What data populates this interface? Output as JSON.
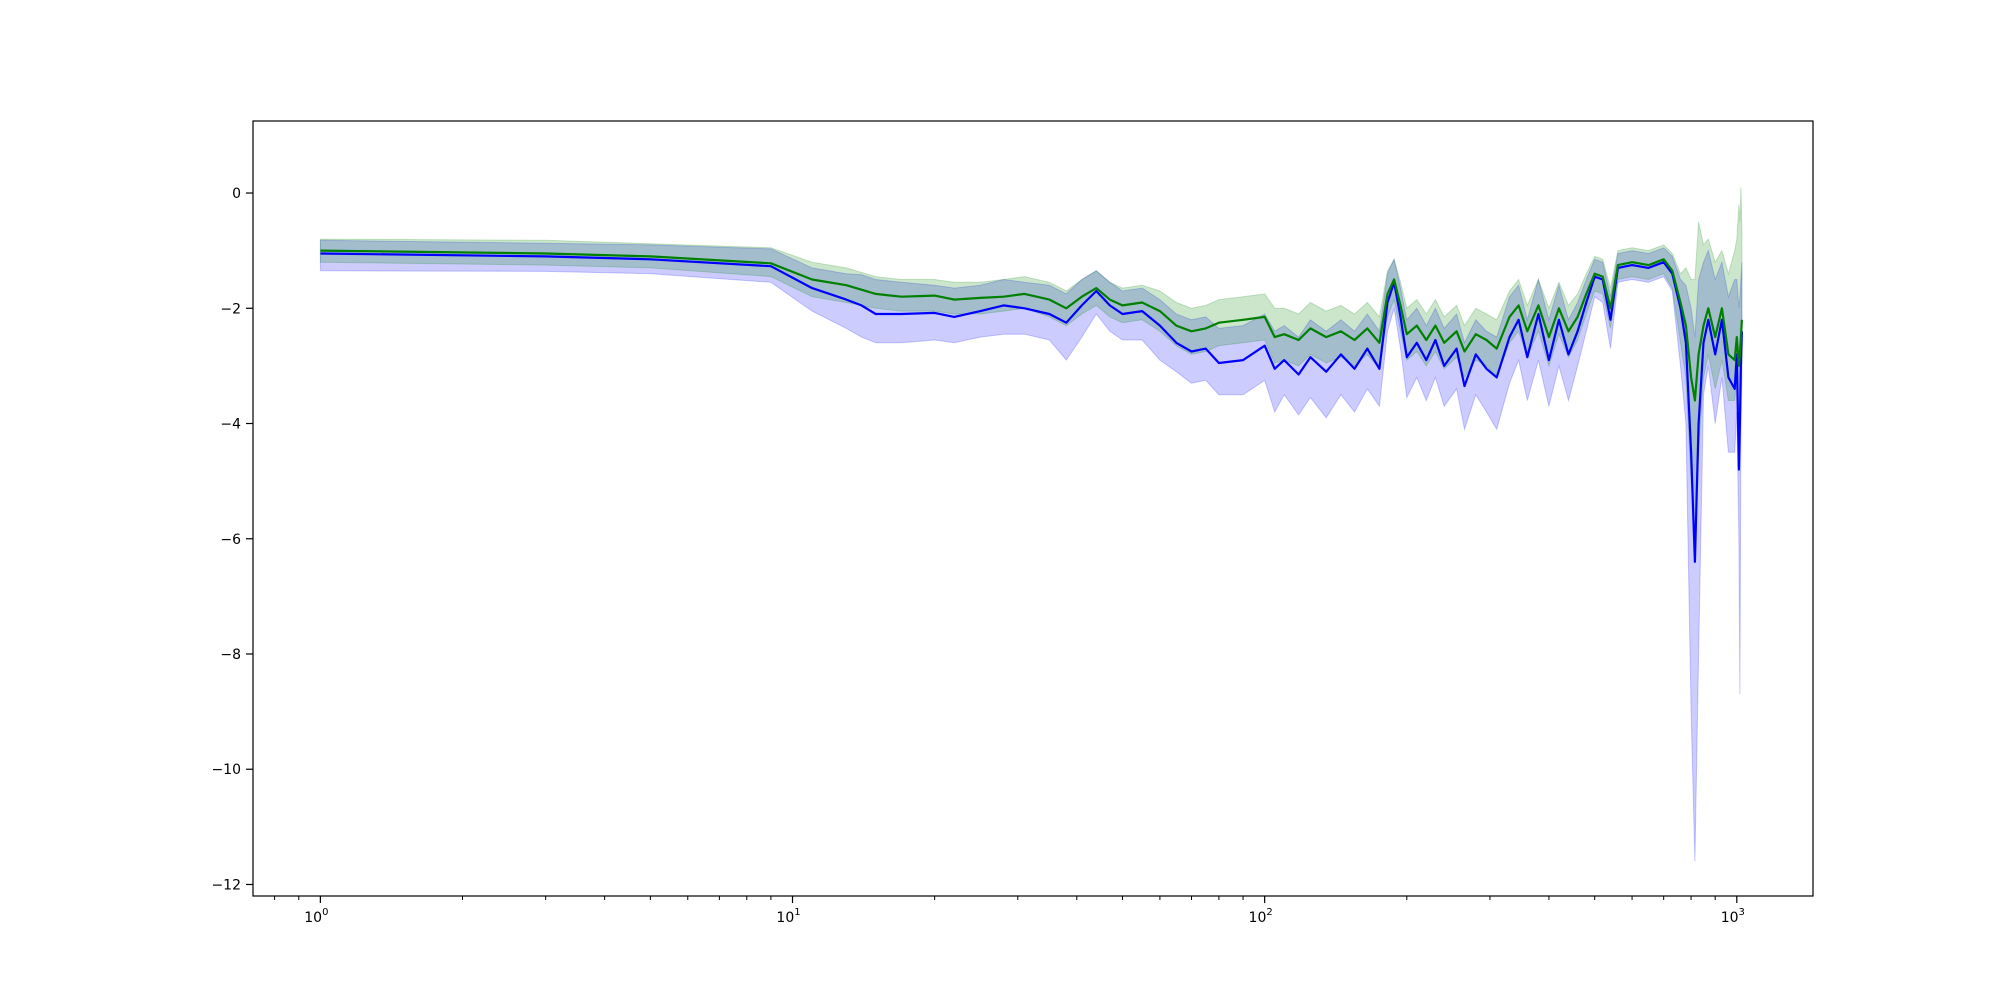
{
  "chart_data": {
    "type": "line",
    "title": "",
    "xlabel": "",
    "ylabel": "",
    "xscale": "log",
    "xlim": [
      0.72,
      1450
    ],
    "ylim": [
      -12.2,
      1.25
    ],
    "grid": false,
    "legend": "none",
    "x_ticks": [
      {
        "value": 1,
        "base": "10",
        "exp": "0"
      },
      {
        "value": 10,
        "base": "10",
        "exp": "1"
      },
      {
        "value": 100,
        "base": "10",
        "exp": "2"
      },
      {
        "value": 1000,
        "base": "10",
        "exp": "3"
      }
    ],
    "y_ticks": [
      {
        "value": 0,
        "label": "0"
      },
      {
        "value": -2,
        "label": "−2"
      },
      {
        "value": -4,
        "label": "−4"
      },
      {
        "value": -6,
        "label": "−6"
      },
      {
        "value": -8,
        "label": "−8"
      },
      {
        "value": -10,
        "label": "−10"
      },
      {
        "value": -12,
        "label": "−12"
      }
    ],
    "series": [
      {
        "color": "#0000ff",
        "band_color": "#0000ff",
        "band_opacity": 0.2,
        "points": [
          [
            1,
            -1.05,
            -0.82,
            -1.35
          ],
          [
            3,
            -1.1,
            -0.87,
            -1.36
          ],
          [
            5,
            -1.15,
            -0.9,
            -1.4
          ],
          [
            9,
            -1.27,
            -0.97,
            -1.55
          ],
          [
            11,
            -1.65,
            -1.3,
            -2.05
          ],
          [
            13,
            -1.85,
            -1.4,
            -2.35
          ],
          [
            14,
            -1.95,
            -1.42,
            -2.5
          ],
          [
            15,
            -2.1,
            -1.5,
            -2.6
          ],
          [
            17,
            -2.1,
            -1.55,
            -2.6
          ],
          [
            20,
            -2.08,
            -1.6,
            -2.55
          ],
          [
            22,
            -2.15,
            -1.65,
            -2.6
          ],
          [
            25,
            -2.05,
            -1.6,
            -2.5
          ],
          [
            28,
            -1.95,
            -1.5,
            -2.45
          ],
          [
            31,
            -2.0,
            -1.55,
            -2.45
          ],
          [
            35,
            -2.1,
            -1.6,
            -2.55
          ],
          [
            38,
            -2.25,
            -1.75,
            -2.9
          ],
          [
            41,
            -1.95,
            -1.5,
            -2.5
          ],
          [
            44,
            -1.7,
            -1.35,
            -2.1
          ],
          [
            47,
            -1.95,
            -1.55,
            -2.4
          ],
          [
            50,
            -2.1,
            -1.7,
            -2.55
          ],
          [
            55,
            -2.05,
            -1.65,
            -2.55
          ],
          [
            60,
            -2.3,
            -1.85,
            -2.9
          ],
          [
            65,
            -2.6,
            -2.1,
            -3.1
          ],
          [
            70,
            -2.75,
            -2.2,
            -3.3
          ],
          [
            75,
            -2.7,
            -2.15,
            -3.25
          ],
          [
            80,
            -2.95,
            -2.35,
            -3.5
          ],
          [
            90,
            -2.9,
            -2.3,
            -3.5
          ],
          [
            100,
            -2.65,
            -2.1,
            -3.25
          ],
          [
            105,
            -3.05,
            -2.4,
            -3.8
          ],
          [
            110,
            -2.9,
            -2.3,
            -3.5
          ],
          [
            118,
            -3.15,
            -2.5,
            -3.85
          ],
          [
            125,
            -2.85,
            -2.2,
            -3.55
          ],
          [
            135,
            -3.1,
            -2.4,
            -3.9
          ],
          [
            145,
            -2.8,
            -2.2,
            -3.5
          ],
          [
            155,
            -3.05,
            -2.4,
            -3.8
          ],
          [
            165,
            -2.7,
            -2.1,
            -3.4
          ],
          [
            175,
            -3.05,
            -2.4,
            -3.7
          ],
          [
            182,
            -1.9,
            -1.4,
            -2.4
          ],
          [
            188,
            -1.55,
            -1.15,
            -2.0
          ],
          [
            194,
            -2.15,
            -1.65,
            -2.7
          ],
          [
            200,
            -2.85,
            -2.2,
            -3.55
          ],
          [
            210,
            -2.6,
            -2.0,
            -3.2
          ],
          [
            220,
            -2.9,
            -2.3,
            -3.6
          ],
          [
            230,
            -2.55,
            -2.0,
            -3.2
          ],
          [
            240,
            -3.0,
            -2.35,
            -3.7
          ],
          [
            255,
            -2.7,
            -2.1,
            -3.4
          ],
          [
            265,
            -3.35,
            -2.6,
            -4.1
          ],
          [
            280,
            -2.8,
            -2.2,
            -3.5
          ],
          [
            295,
            -3.05,
            -2.4,
            -3.8
          ],
          [
            310,
            -3.2,
            -2.5,
            -4.1
          ],
          [
            330,
            -2.5,
            -1.8,
            -3.3
          ],
          [
            345,
            -2.2,
            -1.6,
            -2.9
          ],
          [
            360,
            -2.85,
            -2.2,
            -3.6
          ],
          [
            380,
            -2.1,
            -1.5,
            -2.9
          ],
          [
            400,
            -2.9,
            -2.2,
            -3.7
          ],
          [
            420,
            -2.2,
            -1.6,
            -3.0
          ],
          [
            440,
            -2.8,
            -2.2,
            -3.6
          ],
          [
            460,
            -2.4,
            -1.9,
            -3.0
          ],
          [
            480,
            -1.9,
            -1.5,
            -2.4
          ],
          [
            500,
            -1.45,
            -1.15,
            -1.8
          ],
          [
            520,
            -1.5,
            -1.2,
            -1.9
          ],
          [
            540,
            -2.2,
            -1.8,
            -2.7
          ],
          [
            560,
            -1.3,
            -1.05,
            -1.55
          ],
          [
            600,
            -1.25,
            -1.0,
            -1.5
          ],
          [
            650,
            -1.3,
            -1.05,
            -1.55
          ],
          [
            700,
            -1.2,
            -0.95,
            -1.45
          ],
          [
            730,
            -1.4,
            -1.1,
            -1.7
          ],
          [
            760,
            -2.0,
            -1.5,
            -3.0
          ],
          [
            780,
            -2.6,
            -1.6,
            -4.0
          ],
          [
            800,
            -4.5,
            -2.0,
            -9.0
          ],
          [
            815,
            -6.4,
            -2.5,
            -11.6
          ],
          [
            830,
            -4.0,
            -1.5,
            -8.0
          ],
          [
            850,
            -2.6,
            -1.2,
            -3.5
          ],
          [
            870,
            -2.2,
            -1.0,
            -3.0
          ],
          [
            900,
            -2.8,
            -1.5,
            -4.0
          ],
          [
            930,
            -2.2,
            -1.2,
            -3.2
          ],
          [
            960,
            -3.2,
            -1.8,
            -4.5
          ],
          [
            990,
            -3.4,
            -1.5,
            -4.5
          ],
          [
            1000,
            -2.8,
            -1.5,
            -3.8
          ],
          [
            1010,
            -4.8,
            -2.0,
            -6.0
          ],
          [
            1015,
            -4.0,
            -1.8,
            -8.7
          ],
          [
            1020,
            -3.0,
            -1.5,
            -4.2
          ],
          [
            1025,
            -2.4,
            -1.2,
            -3.2
          ]
        ]
      },
      {
        "color": "#008000",
        "band_color": "#008000",
        "band_opacity": 0.2,
        "points": [
          [
            1,
            -1.0,
            -0.8,
            -1.2
          ],
          [
            3,
            -1.05,
            -0.82,
            -1.25
          ],
          [
            5,
            -1.1,
            -0.88,
            -1.3
          ],
          [
            9,
            -1.22,
            -0.95,
            -1.45
          ],
          [
            11,
            -1.5,
            -1.2,
            -1.8
          ],
          [
            13,
            -1.6,
            -1.3,
            -1.9
          ],
          [
            15,
            -1.75,
            -1.45,
            -2.0
          ],
          [
            17,
            -1.8,
            -1.5,
            -2.05
          ],
          [
            20,
            -1.78,
            -1.5,
            -2.05
          ],
          [
            22,
            -1.85,
            -1.55,
            -2.1
          ],
          [
            25,
            -1.82,
            -1.55,
            -2.1
          ],
          [
            28,
            -1.8,
            -1.5,
            -2.05
          ],
          [
            31,
            -1.75,
            -1.45,
            -2.0
          ],
          [
            35,
            -1.85,
            -1.55,
            -2.15
          ],
          [
            38,
            -2.0,
            -1.7,
            -2.3
          ],
          [
            41,
            -1.8,
            -1.5,
            -2.1
          ],
          [
            44,
            -1.65,
            -1.35,
            -1.95
          ],
          [
            47,
            -1.85,
            -1.55,
            -2.15
          ],
          [
            50,
            -1.95,
            -1.65,
            -2.25
          ],
          [
            55,
            -1.9,
            -1.6,
            -2.2
          ],
          [
            60,
            -2.05,
            -1.7,
            -2.4
          ],
          [
            65,
            -2.3,
            -1.9,
            -2.65
          ],
          [
            70,
            -2.4,
            -2.0,
            -2.8
          ],
          [
            75,
            -2.35,
            -1.95,
            -2.75
          ],
          [
            80,
            -2.25,
            -1.85,
            -2.65
          ],
          [
            90,
            -2.2,
            -1.8,
            -2.6
          ],
          [
            100,
            -2.15,
            -1.75,
            -2.55
          ],
          [
            105,
            -2.5,
            -2.0,
            -2.95
          ],
          [
            110,
            -2.45,
            -2.0,
            -2.9
          ],
          [
            118,
            -2.55,
            -2.1,
            -3.0
          ],
          [
            125,
            -2.35,
            -1.9,
            -2.8
          ],
          [
            135,
            -2.5,
            -2.05,
            -2.95
          ],
          [
            145,
            -2.4,
            -1.95,
            -2.85
          ],
          [
            155,
            -2.55,
            -2.1,
            -3.0
          ],
          [
            165,
            -2.35,
            -1.9,
            -2.8
          ],
          [
            175,
            -2.6,
            -2.15,
            -3.05
          ],
          [
            182,
            -1.75,
            -1.35,
            -2.15
          ],
          [
            188,
            -1.5,
            -1.15,
            -1.85
          ],
          [
            194,
            -1.95,
            -1.55,
            -2.4
          ],
          [
            200,
            -2.45,
            -2.0,
            -2.9
          ],
          [
            210,
            -2.3,
            -1.85,
            -2.75
          ],
          [
            220,
            -2.55,
            -2.1,
            -3.0
          ],
          [
            230,
            -2.3,
            -1.85,
            -2.75
          ],
          [
            240,
            -2.6,
            -2.15,
            -3.05
          ],
          [
            255,
            -2.4,
            -1.95,
            -2.85
          ],
          [
            265,
            -2.75,
            -2.3,
            -3.2
          ],
          [
            280,
            -2.45,
            -2.0,
            -2.9
          ],
          [
            295,
            -2.55,
            -2.1,
            -3.0
          ],
          [
            310,
            -2.7,
            -2.2,
            -3.2
          ],
          [
            330,
            -2.15,
            -1.7,
            -2.6
          ],
          [
            345,
            -1.95,
            -1.5,
            -2.4
          ],
          [
            360,
            -2.4,
            -1.95,
            -2.85
          ],
          [
            380,
            -1.95,
            -1.5,
            -2.4
          ],
          [
            400,
            -2.5,
            -2.0,
            -3.0
          ],
          [
            420,
            -2.0,
            -1.55,
            -2.45
          ],
          [
            440,
            -2.4,
            -1.95,
            -2.85
          ],
          [
            460,
            -2.15,
            -1.75,
            -2.55
          ],
          [
            480,
            -1.75,
            -1.4,
            -2.1
          ],
          [
            500,
            -1.4,
            -1.1,
            -1.7
          ],
          [
            520,
            -1.45,
            -1.15,
            -1.75
          ],
          [
            540,
            -2.0,
            -1.65,
            -2.35
          ],
          [
            560,
            -1.25,
            -1.0,
            -1.5
          ],
          [
            600,
            -1.2,
            -0.95,
            -1.45
          ],
          [
            650,
            -1.25,
            -1.0,
            -1.5
          ],
          [
            700,
            -1.15,
            -0.9,
            -1.4
          ],
          [
            730,
            -1.35,
            -1.05,
            -1.65
          ],
          [
            760,
            -1.9,
            -1.4,
            -2.6
          ],
          [
            780,
            -2.3,
            -1.3,
            -3.2
          ],
          [
            800,
            -3.2,
            -1.5,
            -5.0
          ],
          [
            815,
            -3.6,
            -1.5,
            -6.0
          ],
          [
            830,
            -2.8,
            -0.5,
            -4.5
          ],
          [
            850,
            -2.3,
            -0.9,
            -3.2
          ],
          [
            870,
            -2.0,
            -0.8,
            -2.8
          ],
          [
            900,
            -2.5,
            -1.2,
            -3.4
          ],
          [
            930,
            -2.0,
            -1.0,
            -2.9
          ],
          [
            960,
            -2.8,
            -1.4,
            -3.6
          ],
          [
            990,
            -2.9,
            -1.0,
            -3.6
          ],
          [
            1000,
            -2.5,
            -0.8,
            -3.2
          ],
          [
            1010,
            -3.0,
            -0.2,
            -3.8
          ],
          [
            1015,
            -2.8,
            -0.5,
            -3.6
          ],
          [
            1020,
            -2.5,
            0.1,
            -3.2
          ],
          [
            1025,
            -2.2,
            -0.6,
            -2.9
          ]
        ]
      }
    ]
  }
}
